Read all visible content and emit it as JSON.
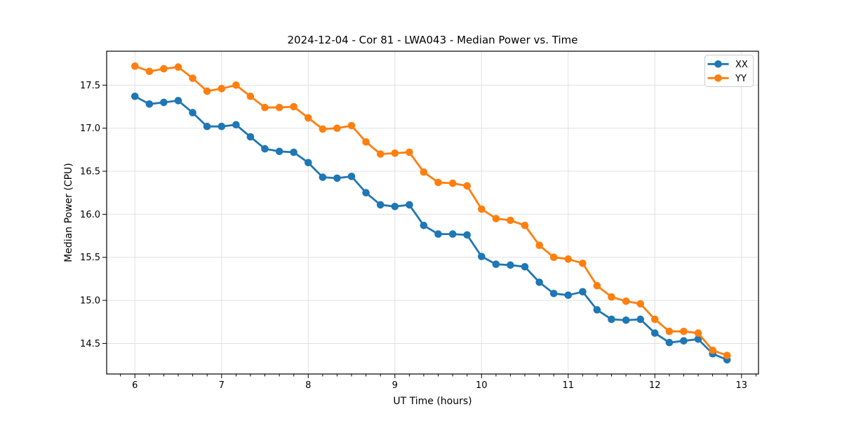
{
  "chart_data": {
    "type": "line",
    "title": "2024-12-04 - Cor 81 - LWA043 - Median Power vs. Time",
    "xlabel": "UT Time (hours)",
    "ylabel": "Median Power (CPU)",
    "xlim": [
      5.674,
      13.196
    ],
    "ylim": [
      14.145,
      17.894
    ],
    "xticks": [
      6,
      7,
      8,
      9,
      10,
      11,
      12,
      13
    ],
    "yticks": [
      14.5,
      15.0,
      15.5,
      16.0,
      16.5,
      17.0,
      17.5
    ],
    "x_minor_step_hours": 0.166667,
    "grid": true,
    "legend_position": "upper right",
    "x": [
      6.0,
      6.167,
      6.333,
      6.5,
      6.667,
      6.833,
      7.0,
      7.167,
      7.333,
      7.5,
      7.667,
      7.833,
      8.0,
      8.167,
      8.333,
      8.5,
      8.667,
      8.833,
      9.0,
      9.167,
      9.333,
      9.5,
      9.667,
      9.833,
      10.0,
      10.167,
      10.333,
      10.5,
      10.667,
      10.833,
      11.0,
      11.167,
      11.333,
      11.5,
      11.667,
      11.833,
      12.0,
      12.167,
      12.333,
      12.5,
      12.667,
      12.833
    ],
    "series": [
      {
        "name": "XX",
        "color": "#1f77b4",
        "values": [
          17.37,
          17.28,
          17.3,
          17.32,
          17.18,
          17.02,
          17.02,
          17.04,
          16.9,
          16.76,
          16.73,
          16.72,
          16.6,
          16.43,
          16.42,
          16.44,
          16.25,
          16.11,
          16.09,
          16.11,
          15.87,
          15.77,
          15.77,
          15.76,
          15.51,
          15.42,
          15.41,
          15.39,
          15.21,
          15.08,
          15.06,
          15.1,
          14.89,
          14.78,
          14.77,
          14.78,
          14.62,
          14.51,
          14.53,
          14.55,
          14.38,
          14.31
        ]
      },
      {
        "name": "YY",
        "color": "#ff7f0e",
        "values": [
          17.72,
          17.66,
          17.69,
          17.71,
          17.58,
          17.43,
          17.46,
          17.5,
          17.37,
          17.24,
          17.24,
          17.25,
          17.12,
          16.99,
          17.0,
          17.03,
          16.84,
          16.7,
          16.71,
          16.72,
          16.49,
          16.37,
          16.36,
          16.33,
          16.06,
          15.95,
          15.93,
          15.87,
          15.64,
          15.5,
          15.48,
          15.43,
          15.17,
          15.04,
          14.99,
          14.96,
          14.78,
          14.64,
          14.64,
          14.62,
          14.42,
          14.36
        ]
      }
    ],
    "colors": {
      "grid": "#e0e0e0",
      "spine": "#000000",
      "text": "#000000",
      "legend_border": "#cccccc",
      "legend_background": "#ffffff"
    }
  }
}
